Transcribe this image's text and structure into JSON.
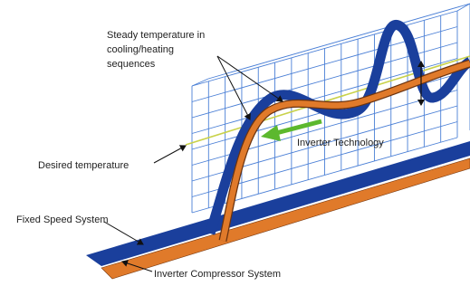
{
  "labels": {
    "steady_temperature": [
      "Steady temperature in",
      "cooling/heating",
      "sequences"
    ],
    "inverter_technology": "Inverter Technology",
    "desired_temperature": "Desired temperature",
    "fixed_speed_system": "Fixed Speed System",
    "inverter_compressor_system": "Inverter Compressor System"
  }
}
